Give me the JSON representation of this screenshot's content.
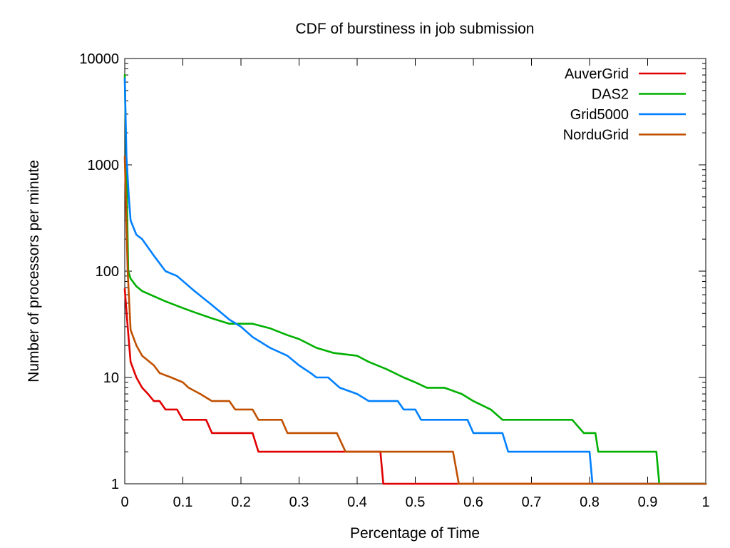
{
  "chart_data": {
    "type": "line",
    "title": "CDF of burstiness in job submission",
    "xlabel": "Percentage of Time",
    "ylabel": "Number of processors per minute",
    "xlim": [
      0,
      1
    ],
    "ylim": [
      1,
      10000
    ],
    "yscale": "log",
    "grid": false,
    "legend_position": "top-right",
    "x_ticks": [
      {
        "value": 0,
        "label": "0"
      },
      {
        "value": 0.1,
        "label": "0.1"
      },
      {
        "value": 0.2,
        "label": "0.2"
      },
      {
        "value": 0.3,
        "label": "0.3"
      },
      {
        "value": 0.4,
        "label": "0.4"
      },
      {
        "value": 0.5,
        "label": "0.5"
      },
      {
        "value": 0.6,
        "label": "0.6"
      },
      {
        "value": 0.7,
        "label": "0.7"
      },
      {
        "value": 0.8,
        "label": "0.8"
      },
      {
        "value": 0.9,
        "label": "0.9"
      },
      {
        "value": 1,
        "label": "1"
      }
    ],
    "y_ticks": [
      {
        "value": 1,
        "label": "1"
      },
      {
        "value": 10,
        "label": "10"
      },
      {
        "value": 100,
        "label": "100"
      },
      {
        "value": 1000,
        "label": "1000"
      },
      {
        "value": 10000,
        "label": "10000"
      }
    ],
    "series": [
      {
        "name": "AuverGrid",
        "color": "#e00000",
        "points": [
          [
            0,
            68
          ],
          [
            0.005,
            30
          ],
          [
            0.01,
            14
          ],
          [
            0.02,
            10
          ],
          [
            0.03,
            8
          ],
          [
            0.04,
            7
          ],
          [
            0.05,
            6
          ],
          [
            0.06,
            6
          ],
          [
            0.07,
            5
          ],
          [
            0.09,
            5
          ],
          [
            0.1,
            4
          ],
          [
            0.14,
            4
          ],
          [
            0.15,
            3
          ],
          [
            0.22,
            3
          ],
          [
            0.23,
            2
          ],
          [
            0.44,
            2
          ],
          [
            0.445,
            1
          ],
          [
            1,
            1
          ]
        ]
      },
      {
        "name": "DAS2",
        "color": "#00b000",
        "points": [
          [
            0,
            7000
          ],
          [
            0.003,
            800
          ],
          [
            0.006,
            100
          ],
          [
            0.01,
            85
          ],
          [
            0.02,
            72
          ],
          [
            0.03,
            65
          ],
          [
            0.05,
            58
          ],
          [
            0.07,
            52
          ],
          [
            0.1,
            45
          ],
          [
            0.12,
            41
          ],
          [
            0.15,
            36
          ],
          [
            0.18,
            32
          ],
          [
            0.22,
            32
          ],
          [
            0.25,
            29
          ],
          [
            0.28,
            25
          ],
          [
            0.3,
            23
          ],
          [
            0.33,
            19
          ],
          [
            0.36,
            17
          ],
          [
            0.4,
            16
          ],
          [
            0.42,
            14
          ],
          [
            0.45,
            12
          ],
          [
            0.48,
            10
          ],
          [
            0.5,
            9
          ],
          [
            0.52,
            8
          ],
          [
            0.55,
            8
          ],
          [
            0.58,
            7
          ],
          [
            0.6,
            6
          ],
          [
            0.63,
            5
          ],
          [
            0.65,
            4
          ],
          [
            0.77,
            4
          ],
          [
            0.79,
            3
          ],
          [
            0.81,
            3
          ],
          [
            0.815,
            2
          ],
          [
            0.915,
            2
          ],
          [
            0.92,
            1
          ],
          [
            1,
            1
          ]
        ]
      },
      {
        "name": "Grid5000",
        "color": "#0080ff",
        "points": [
          [
            0,
            6500
          ],
          [
            0.003,
            1200
          ],
          [
            0.007,
            500
          ],
          [
            0.01,
            300
          ],
          [
            0.02,
            220
          ],
          [
            0.03,
            200
          ],
          [
            0.05,
            140
          ],
          [
            0.07,
            100
          ],
          [
            0.09,
            90
          ],
          [
            0.12,
            65
          ],
          [
            0.15,
            48
          ],
          [
            0.18,
            35
          ],
          [
            0.2,
            30
          ],
          [
            0.22,
            24
          ],
          [
            0.25,
            19
          ],
          [
            0.28,
            16
          ],
          [
            0.3,
            13
          ],
          [
            0.32,
            11
          ],
          [
            0.33,
            10
          ],
          [
            0.35,
            10
          ],
          [
            0.37,
            8
          ],
          [
            0.4,
            7
          ],
          [
            0.42,
            6
          ],
          [
            0.47,
            6
          ],
          [
            0.48,
            5
          ],
          [
            0.5,
            5
          ],
          [
            0.51,
            4
          ],
          [
            0.59,
            4
          ],
          [
            0.6,
            3
          ],
          [
            0.65,
            3
          ],
          [
            0.66,
            2
          ],
          [
            0.8,
            2
          ],
          [
            0.805,
            1
          ],
          [
            1,
            1
          ]
        ]
      },
      {
        "name": "NorduGrid",
        "color": "#c05000",
        "points": [
          [
            0,
            1200
          ],
          [
            0.005,
            100
          ],
          [
            0.01,
            28
          ],
          [
            0.02,
            20
          ],
          [
            0.03,
            16
          ],
          [
            0.05,
            13
          ],
          [
            0.06,
            11
          ],
          [
            0.08,
            10
          ],
          [
            0.1,
            9
          ],
          [
            0.11,
            8
          ],
          [
            0.13,
            7
          ],
          [
            0.15,
            6
          ],
          [
            0.18,
            6
          ],
          [
            0.19,
            5
          ],
          [
            0.21,
            5
          ],
          [
            0.22,
            5
          ],
          [
            0.23,
            4
          ],
          [
            0.27,
            4
          ],
          [
            0.28,
            3
          ],
          [
            0.365,
            3
          ],
          [
            0.38,
            2
          ],
          [
            0.565,
            2
          ],
          [
            0.575,
            1
          ],
          [
            1,
            1
          ]
        ]
      }
    ]
  }
}
